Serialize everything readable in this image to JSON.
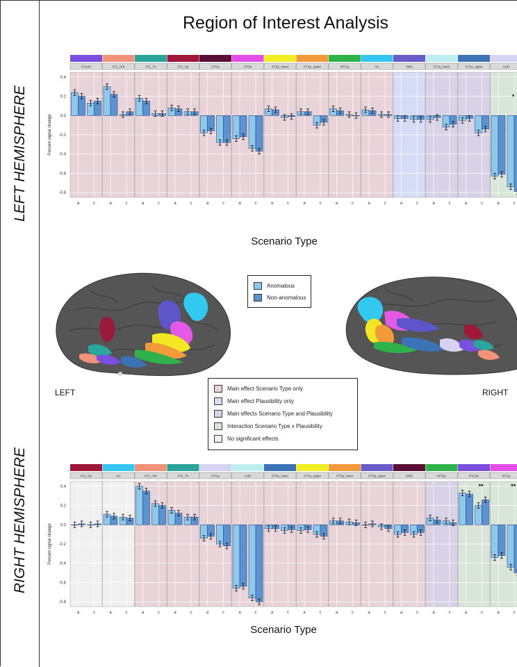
{
  "title": "Region of Interest Analysis",
  "side_labels": {
    "left": "LEFT HEMISPHERE",
    "right": "RIGHT HEMISPHERE"
  },
  "brain_labels": {
    "left": "LEFT",
    "right": "RIGHT"
  },
  "legend_plausibility": [
    {
      "label": "Anomalous",
      "color": "#8ec8ec"
    },
    {
      "label": "Non-anomalous",
      "color": "#5b93d1"
    }
  ],
  "legend_effects": [
    {
      "label": "Main effect Scenario Type only",
      "color": "#e8d3d8"
    },
    {
      "label": "Main effect Plausibility only",
      "color": "#d6dcf6"
    },
    {
      "label": "Main effects Scenario Type and Plausibility",
      "color": "#d8d2e6"
    },
    {
      "label": "Interaction Scenario Type x Plausibility",
      "color": "#d8e5d8"
    },
    {
      "label": "No significant effects",
      "color": "#f0f0f0"
    }
  ],
  "colors": {
    "anomalous": "#8ec8ec",
    "non_anomalous": "#5b93d1"
  },
  "chart_data": [
    {
      "type": "bar",
      "panel": "left",
      "xlabel": "Scenario Type",
      "ylabel": "Percent signal change",
      "ylim": [
        -0.85,
        0.45
      ],
      "yticks": [
        0.4,
        0.2,
        0.0,
        -0.2,
        -0.4,
        -0.6,
        -0.8
      ],
      "grid": true,
      "x_categories": [
        "a",
        "c"
      ],
      "facets": [
        {
          "name": "IFGorb",
          "strip_color": "#7a4fe0",
          "bg": "#e8d3d8",
          "values": [
            0.24,
            0.2,
            0.13,
            0.15
          ]
        },
        {
          "name": "IFG_Orb",
          "strip_color": "#f29279",
          "bg": "#e8d3d8",
          "values": [
            0.3,
            0.22,
            0.01,
            0.04
          ]
        },
        {
          "name": "IFG_Tri",
          "strip_color": "#2aa39a",
          "bg": "#e8d3d8",
          "values": [
            0.18,
            0.15,
            0.02,
            0.02
          ]
        },
        {
          "name": "IFG_Op",
          "strip_color": "#a0173a",
          "bg": "#e8d3d8",
          "values": [
            0.08,
            0.07,
            0.04,
            0.04
          ]
        },
        {
          "name": "STGa",
          "strip_color": "#5a1036",
          "bg": "#e8d3d8",
          "values": [
            -0.18,
            -0.16,
            -0.28,
            -0.28
          ]
        },
        {
          "name": "STGp",
          "strip_color": "#e34fe6",
          "bg": "#e8d3d8",
          "values": [
            -0.24,
            -0.22,
            -0.34,
            -0.37
          ]
        },
        {
          "name": "STSp_lower",
          "strip_color": "#f2ee24",
          "bg": "#e8d3d8",
          "values": [
            0.07,
            0.06,
            -0.02,
            -0.01
          ]
        },
        {
          "name": "STSp_upper",
          "strip_color": "#f29a3b",
          "bg": "#e8d3d8",
          "values": [
            0.04,
            0.04,
            -0.1,
            -0.07
          ]
        },
        {
          "name": "MTGp",
          "strip_color": "#2db34a",
          "bg": "#e8d3d8",
          "values": [
            0.07,
            0.05,
            0.01,
            0.0
          ]
        },
        {
          "name": "AG",
          "strip_color": "#35c6f0",
          "bg": "#e8d3d8",
          "values": [
            0.06,
            0.05,
            0.01,
            0.01
          ]
        },
        {
          "name": "SMG",
          "strip_color": "#6a5cc8",
          "bg": "#d6dcf6",
          "values": [
            -0.03,
            -0.03,
            -0.04,
            -0.04
          ]
        },
        {
          "name": "STSa_lower",
          "strip_color": "#bdeef2",
          "bg": "#d8d2e6",
          "values": [
            -0.04,
            -0.02,
            -0.12,
            -0.09
          ]
        },
        {
          "name": "STSa_upper",
          "strip_color": "#3c73b6",
          "bg": "#d8d2e6",
          "values": [
            -0.05,
            -0.03,
            -0.18,
            -0.14
          ]
        },
        {
          "name": "AUD",
          "strip_color": "#d6d2f2",
          "bg": "#d8e5d8",
          "values": [
            -0.63,
            -0.61,
            -0.74,
            -0.79
          ],
          "annotation": "*"
        }
      ]
    },
    {
      "type": "bar",
      "panel": "right",
      "xlabel": "Scenario Type",
      "ylabel": "Percent signal change",
      "ylim": [
        -0.85,
        0.45
      ],
      "yticks": [
        0.4,
        0.2,
        0.0,
        -0.2,
        -0.4,
        -0.6,
        -0.8
      ],
      "grid": true,
      "x_categories": [
        "a",
        "c"
      ],
      "facets": [
        {
          "name": "IFG_Op",
          "strip_color": "#a0173a",
          "bg": "#f0f0f0",
          "values": [
            0.0,
            0.01,
            0.0,
            0.01
          ]
        },
        {
          "name": "AG",
          "strip_color": "#35c6f0",
          "bg": "#f0f0f0",
          "values": [
            0.11,
            0.09,
            0.08,
            0.07
          ]
        },
        {
          "name": "IFG_Orb",
          "strip_color": "#f29279",
          "bg": "#e8d3d8",
          "values": [
            0.4,
            0.35,
            0.22,
            0.2
          ]
        },
        {
          "name": "IFG_Tri",
          "strip_color": "#2aa39a",
          "bg": "#e8d3d8",
          "values": [
            0.15,
            0.12,
            0.08,
            0.08
          ]
        },
        {
          "name": "STGa",
          "strip_color": "#d6d2f2",
          "bg": "#e8d3d8",
          "values": [
            -0.14,
            -0.12,
            -0.2,
            -0.22
          ]
        },
        {
          "name": "AUD",
          "strip_color": "#bdeef2",
          "bg": "#e8d3d8",
          "values": [
            -0.66,
            -0.64,
            -0.76,
            -0.8
          ]
        },
        {
          "name": "STSa_lower",
          "strip_color": "#3c73b6",
          "bg": "#e8d3d8",
          "values": [
            -0.04,
            -0.04,
            -0.06,
            -0.05
          ]
        },
        {
          "name": "STSa_upper",
          "strip_color": "#f2ee24",
          "bg": "#e8d3d8",
          "values": [
            -0.06,
            -0.05,
            -0.1,
            -0.12
          ]
        },
        {
          "name": "STSp_lower",
          "strip_color": "#f29a3b",
          "bg": "#e8d3d8",
          "values": [
            0.04,
            0.04,
            0.03,
            0.02
          ]
        },
        {
          "name": "STSp_upper",
          "strip_color": "#6a5cc8",
          "bg": "#e8d3d8",
          "values": [
            0.0,
            0.01,
            -0.02,
            -0.04
          ]
        },
        {
          "name": "SMG",
          "strip_color": "#5a1036",
          "bg": "#e8d3d8",
          "values": [
            -0.1,
            -0.08,
            -0.1,
            -0.08
          ]
        },
        {
          "name": "MTGp",
          "strip_color": "#2db34a",
          "bg": "#d8d2e6",
          "values": [
            0.07,
            0.05,
            0.04,
            0.02
          ]
        },
        {
          "name": "IFGorb",
          "strip_color": "#7a4fe0",
          "bg": "#d8e5d8",
          "values": [
            0.33,
            0.32,
            0.2,
            0.26
          ],
          "annotation": "**"
        },
        {
          "name": "STGp",
          "strip_color": "#e34fe6",
          "bg": "#d8e5d8",
          "values": [
            -0.34,
            -0.32,
            -0.44,
            -0.5
          ],
          "annotation": "**"
        }
      ]
    }
  ]
}
